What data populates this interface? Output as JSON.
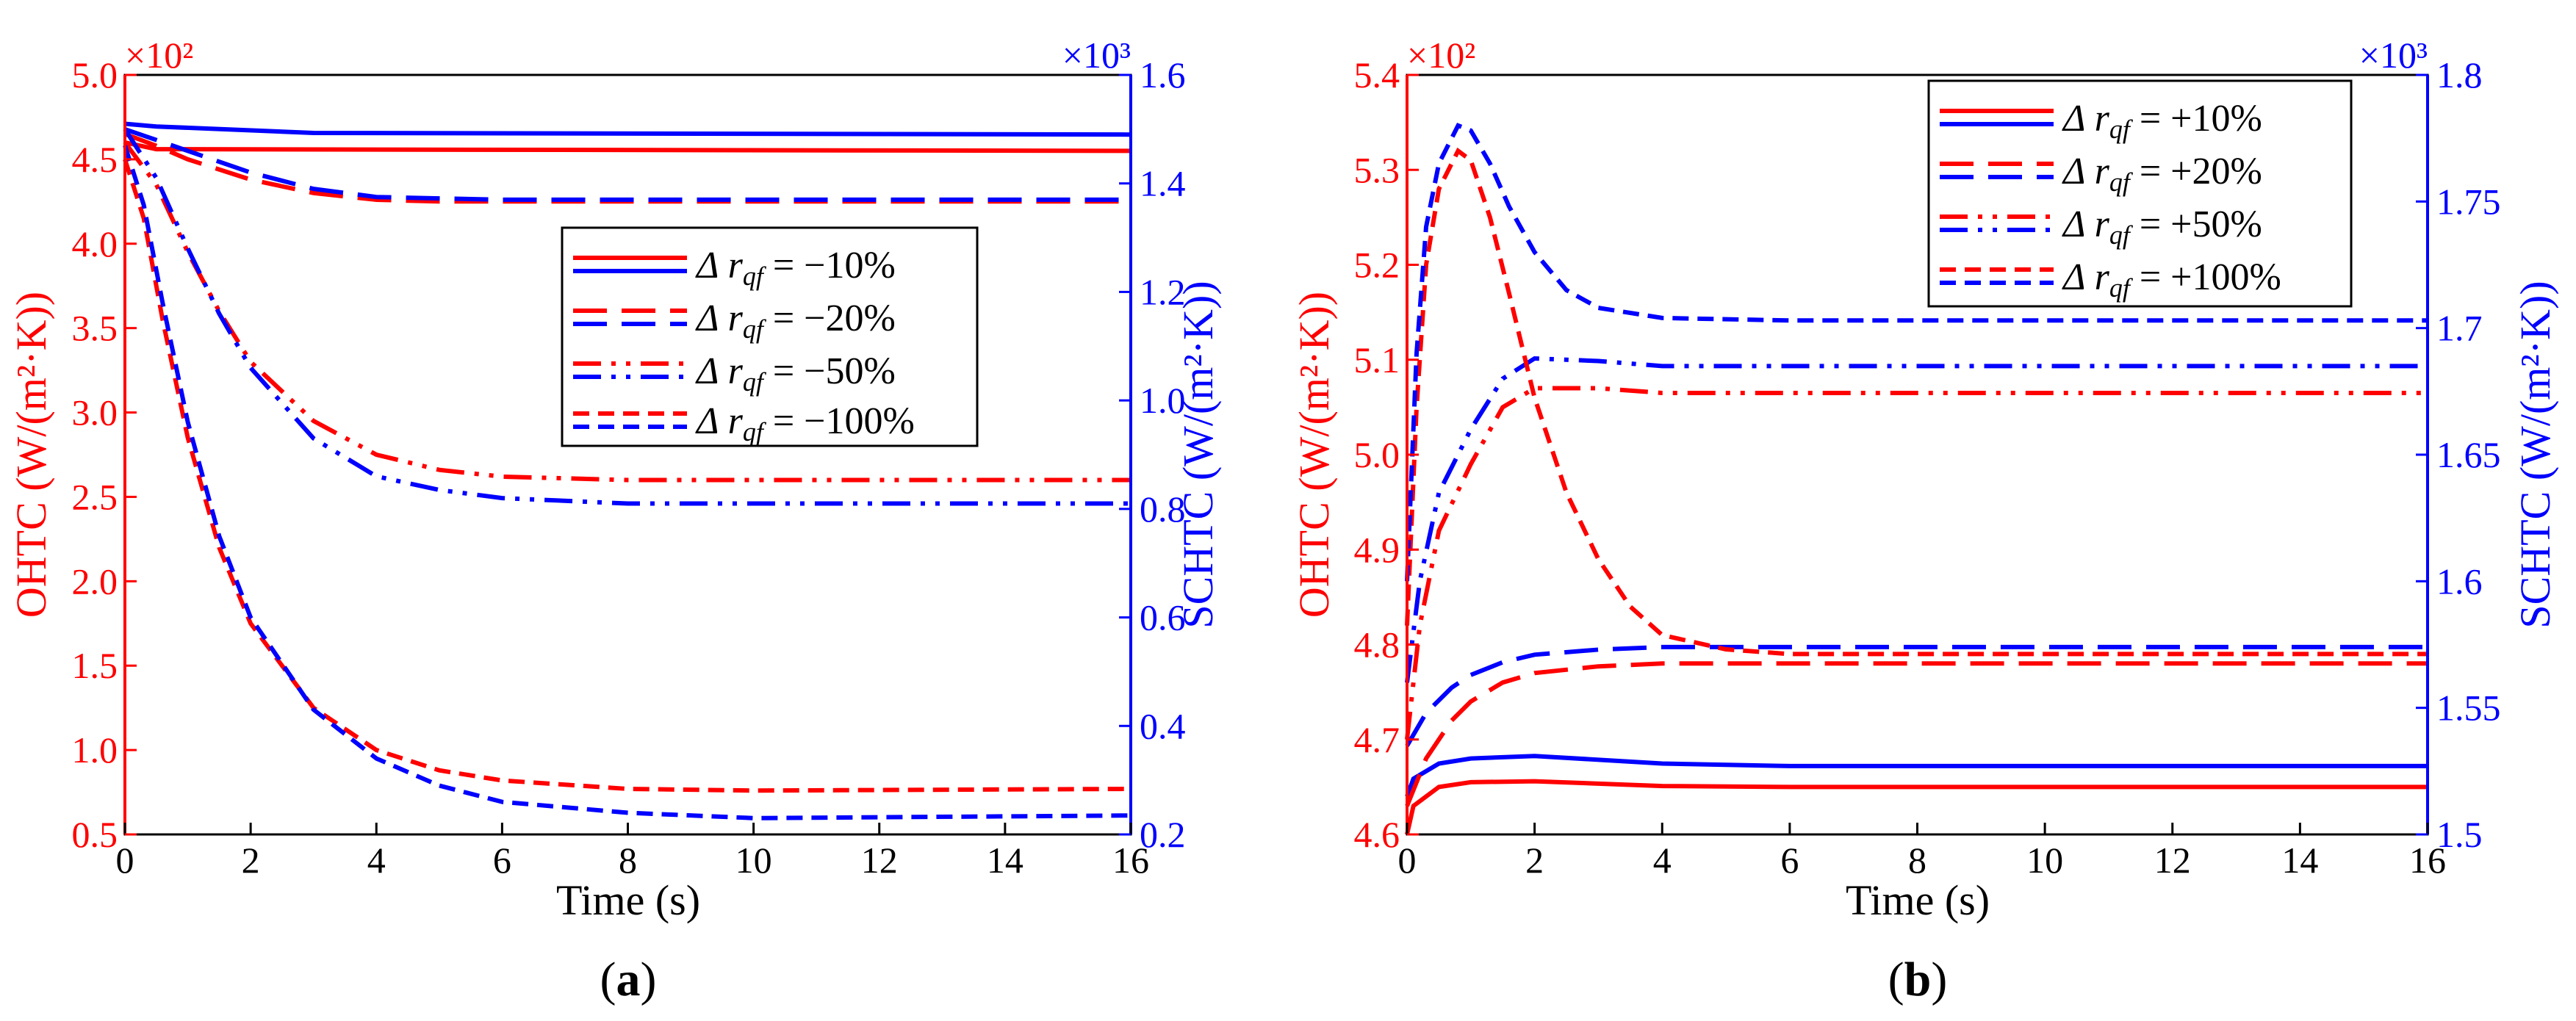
{
  "colors": {
    "red": "#ff0000",
    "blue": "#0000ff",
    "black": "#000000"
  },
  "panels": [
    {
      "label": "(a)",
      "label_letter": "a",
      "x_label": "Time (s)",
      "y_left_label": "OHTC (W/(m²·K))",
      "y_right_label": "SCHTC (W/(m²·K))",
      "left_multiplier": "×10²",
      "right_multiplier": "×10³",
      "legend": [
        {
          "prefix": "Δ",
          "var": "r",
          "sub": "qf",
          "eq": " = −10%",
          "style": "solid"
        },
        {
          "prefix": "Δ",
          "var": "r",
          "sub": "qf",
          "eq": " = −20%",
          "style": "longdash"
        },
        {
          "prefix": "Δ",
          "var": "r",
          "sub": "qf",
          "eq": " = −50%",
          "style": "dashdotdot"
        },
        {
          "prefix": "Δ",
          "var": "r",
          "sub": "qf",
          "eq": " = −100%",
          "style": "shortdash"
        }
      ]
    },
    {
      "label": "(b)",
      "label_letter": "b",
      "x_label": "Time (s)",
      "y_left_label": "OHTC (W/(m²·K))",
      "y_right_label": "SCHTC (W/(m²·K))",
      "left_multiplier": "×10²",
      "right_multiplier": "×10³",
      "legend": [
        {
          "prefix": "Δ",
          "var": "r",
          "sub": "qf",
          "eq": " = +10%",
          "style": "solid"
        },
        {
          "prefix": "Δ",
          "var": "r",
          "sub": "qf",
          "eq": " = +20%",
          "style": "longdash"
        },
        {
          "prefix": "Δ",
          "var": "r",
          "sub": "qf",
          "eq": " = +50%",
          "style": "dashdotdot"
        },
        {
          "prefix": "Δ",
          "var": "r",
          "sub": "qf",
          "eq": " = +100%",
          "style": "shortdash"
        }
      ]
    }
  ],
  "chart_data": [
    {
      "type": "line",
      "title": "(a)",
      "xlabel": "Time (s)",
      "ylabel_left": "OHTC (W/(m²·K)) ×10²",
      "ylabel_right": "SCHTC (W/(m²·K)) ×10³",
      "xlim": [
        0,
        16
      ],
      "ylim_left": [
        0.5,
        5.0
      ],
      "ylim_right": [
        0.2,
        1.6
      ],
      "x_ticks": [
        0,
        2,
        4,
        6,
        8,
        10,
        12,
        14,
        16
      ],
      "y_left_ticks": [
        "0.5",
        "1.0",
        "1.5",
        "2.0",
        "2.5",
        "3.0",
        "3.5",
        "4.0",
        "4.5",
        "5.0"
      ],
      "y_right_ticks": [
        "0.2",
        "0.4",
        "0.6",
        "0.8",
        "1.0",
        "1.2",
        "1.4",
        "1.6"
      ],
      "series": [
        {
          "name": "OHTC Δr_qf = −10%",
          "axis": "left",
          "color": "red",
          "style": "solid",
          "points": [
            [
              0,
              4.6
            ],
            [
              0.5,
              4.56
            ],
            [
              16,
              4.55
            ]
          ]
        },
        {
          "name": "SCHTC Δr_qf = −10%",
          "axis": "right",
          "color": "blue",
          "style": "solid",
          "points": [
            [
              0,
              1.51
            ],
            [
              0.5,
              1.505
            ],
            [
              3,
              1.493
            ],
            [
              16,
              1.49
            ]
          ]
        },
        {
          "name": "OHTC Δr_qf = −20%",
          "axis": "left",
          "color": "red",
          "style": "longdash",
          "points": [
            [
              0,
              4.65
            ],
            [
              0.5,
              4.58
            ],
            [
              1,
              4.5
            ],
            [
              2,
              4.38
            ],
            [
              3,
              4.3
            ],
            [
              4,
              4.26
            ],
            [
              5,
              4.25
            ],
            [
              16,
              4.25
            ]
          ]
        },
        {
          "name": "SCHTC Δr_qf = −20%",
          "axis": "right",
          "color": "blue",
          "style": "longdash",
          "points": [
            [
              0,
              1.5
            ],
            [
              0.5,
              1.48
            ],
            [
              1,
              1.46
            ],
            [
              2,
              1.42
            ],
            [
              3,
              1.39
            ],
            [
              4,
              1.375
            ],
            [
              6,
              1.37
            ],
            [
              16,
              1.37
            ]
          ]
        },
        {
          "name": "OHTC Δr_qf = −50%",
          "axis": "left",
          "color": "red",
          "style": "dashdotdot",
          "points": [
            [
              0,
              4.6
            ],
            [
              0.5,
              4.35
            ],
            [
              1,
              3.95
            ],
            [
              1.5,
              3.6
            ],
            [
              2,
              3.3
            ],
            [
              3,
              2.95
            ],
            [
              4,
              2.75
            ],
            [
              5,
              2.66
            ],
            [
              6,
              2.62
            ],
            [
              8,
              2.6
            ],
            [
              16,
              2.6
            ]
          ]
        },
        {
          "name": "SCHTC Δr_qf = −50%",
          "axis": "right",
          "color": "blue",
          "style": "dashdotdot",
          "points": [
            [
              0,
              1.5
            ],
            [
              0.5,
              1.41
            ],
            [
              1,
              1.28
            ],
            [
              1.5,
              1.16
            ],
            [
              2,
              1.06
            ],
            [
              3,
              0.93
            ],
            [
              4,
              0.86
            ],
            [
              5,
              0.835
            ],
            [
              6,
              0.82
            ],
            [
              8,
              0.81
            ],
            [
              16,
              0.81
            ]
          ]
        },
        {
          "name": "OHTC Δr_qf = −100%",
          "axis": "left",
          "color": "red",
          "style": "shortdash",
          "points": [
            [
              0,
              4.5
            ],
            [
              0.3,
              4.15
            ],
            [
              0.6,
              3.55
            ],
            [
              1,
              2.85
            ],
            [
              1.5,
              2.2
            ],
            [
              2,
              1.75
            ],
            [
              3,
              1.25
            ],
            [
              4,
              1.0
            ],
            [
              5,
              0.88
            ],
            [
              6,
              0.82
            ],
            [
              8,
              0.77
            ],
            [
              10,
              0.76
            ],
            [
              16,
              0.77
            ]
          ]
        },
        {
          "name": "SCHTC Δr_qf = −100%",
          "axis": "right",
          "color": "blue",
          "style": "shortdash",
          "points": [
            [
              0,
              1.47
            ],
            [
              0.3,
              1.36
            ],
            [
              0.6,
              1.18
            ],
            [
              1,
              0.96
            ],
            [
              1.5,
              0.75
            ],
            [
              2,
              0.6
            ],
            [
              3,
              0.43
            ],
            [
              4,
              0.34
            ],
            [
              5,
              0.29
            ],
            [
              6,
              0.26
            ],
            [
              8,
              0.24
            ],
            [
              10,
              0.23
            ],
            [
              16,
              0.235
            ]
          ]
        }
      ]
    },
    {
      "type": "line",
      "title": "(b)",
      "xlabel": "Time (s)",
      "ylabel_left": "OHTC (W/(m²·K)) ×10²",
      "ylabel_right": "SCHTC (W/(m²·K)) ×10³",
      "xlim": [
        0,
        16
      ],
      "ylim_left": [
        4.6,
        5.4
      ],
      "ylim_right": [
        1.5,
        1.8
      ],
      "x_ticks": [
        0,
        2,
        4,
        6,
        8,
        10,
        12,
        14,
        16
      ],
      "y_left_ticks": [
        "4.6",
        "4.7",
        "4.8",
        "4.9",
        "5.0",
        "5.1",
        "5.2",
        "5.3",
        "5.4"
      ],
      "y_right_ticks": [
        "1.5",
        "1.55",
        "1.6",
        "1.65",
        "1.7",
        "1.75",
        "1.8"
      ],
      "series": [
        {
          "name": "OHTC Δr_qf = +10%",
          "axis": "left",
          "color": "red",
          "style": "solid",
          "points": [
            [
              0,
              4.6
            ],
            [
              0.1,
              4.63
            ],
            [
              0.5,
              4.65
            ],
            [
              1,
              4.655
            ],
            [
              2,
              4.656
            ],
            [
              4,
              4.651
            ],
            [
              6,
              4.65
            ],
            [
              16,
              4.65
            ]
          ]
        },
        {
          "name": "SCHTC Δr_qf = +10%",
          "axis": "right",
          "color": "blue",
          "style": "solid",
          "points": [
            [
              0,
              1.515
            ],
            [
              0.1,
              1.522
            ],
            [
              0.5,
              1.528
            ],
            [
              1,
              1.53
            ],
            [
              2,
              1.531
            ],
            [
              4,
              1.528
            ],
            [
              6,
              1.527
            ],
            [
              16,
              1.527
            ]
          ]
        },
        {
          "name": "OHTC Δr_qf = +20%",
          "axis": "left",
          "color": "red",
          "style": "longdash",
          "points": [
            [
              0,
              4.63
            ],
            [
              0.3,
              4.68
            ],
            [
              0.7,
              4.72
            ],
            [
              1,
              4.74
            ],
            [
              1.5,
              4.76
            ],
            [
              2,
              4.77
            ],
            [
              3,
              4.777
            ],
            [
              4,
              4.78
            ],
            [
              16,
              4.78
            ]
          ]
        },
        {
          "name": "SCHTC Δr_qf = +20%",
          "axis": "right",
          "color": "blue",
          "style": "longdash",
          "points": [
            [
              0,
              1.535
            ],
            [
              0.3,
              1.548
            ],
            [
              0.7,
              1.558
            ],
            [
              1,
              1.563
            ],
            [
              1.5,
              1.568
            ],
            [
              2,
              1.571
            ],
            [
              3,
              1.573
            ],
            [
              4,
              1.574
            ],
            [
              16,
              1.574
            ]
          ]
        },
        {
          "name": "OHTC Δr_qf = +50%",
          "axis": "left",
          "color": "red",
          "style": "dashdotdot",
          "points": [
            [
              0,
              4.7
            ],
            [
              0.2,
              4.82
            ],
            [
              0.5,
              4.92
            ],
            [
              1,
              4.99
            ],
            [
              1.5,
              5.05
            ],
            [
              2,
              5.07
            ],
            [
              3,
              5.07
            ],
            [
              4,
              5.065
            ],
            [
              16,
              5.065
            ]
          ]
        },
        {
          "name": "SCHTC Δr_qf = +50%",
          "axis": "right",
          "color": "blue",
          "style": "dashdotdot",
          "points": [
            [
              0,
              1.56
            ],
            [
              0.2,
              1.6
            ],
            [
              0.5,
              1.635
            ],
            [
              1,
              1.66
            ],
            [
              1.5,
              1.68
            ],
            [
              2,
              1.688
            ],
            [
              3,
              1.687
            ],
            [
              4,
              1.685
            ],
            [
              16,
              1.685
            ]
          ]
        },
        {
          "name": "OHTC Δr_qf = +100%",
          "axis": "left",
          "color": "red",
          "style": "shortdash",
          "points": [
            [
              0,
              4.82
            ],
            [
              0.15,
              5.05
            ],
            [
              0.3,
              5.2
            ],
            [
              0.5,
              5.28
            ],
            [
              0.8,
              5.32
            ],
            [
              1,
              5.31
            ],
            [
              1.3,
              5.25
            ],
            [
              1.6,
              5.17
            ],
            [
              2,
              5.06
            ],
            [
              2.5,
              4.96
            ],
            [
              3,
              4.89
            ],
            [
              3.5,
              4.84
            ],
            [
              4,
              4.81
            ],
            [
              5,
              4.795
            ],
            [
              6,
              4.79
            ],
            [
              16,
              4.79
            ]
          ]
        },
        {
          "name": "SCHTC Δr_qf = +100%",
          "axis": "right",
          "color": "blue",
          "style": "shortdash",
          "points": [
            [
              0,
              1.6
            ],
            [
              0.15,
              1.69
            ],
            [
              0.3,
              1.74
            ],
            [
              0.5,
              1.765
            ],
            [
              0.8,
              1.78
            ],
            [
              1,
              1.778
            ],
            [
              1.3,
              1.765
            ],
            [
              1.6,
              1.748
            ],
            [
              2,
              1.73
            ],
            [
              2.5,
              1.715
            ],
            [
              3,
              1.708
            ],
            [
              4,
              1.704
            ],
            [
              6,
              1.703
            ],
            [
              16,
              1.703
            ]
          ]
        }
      ]
    }
  ]
}
